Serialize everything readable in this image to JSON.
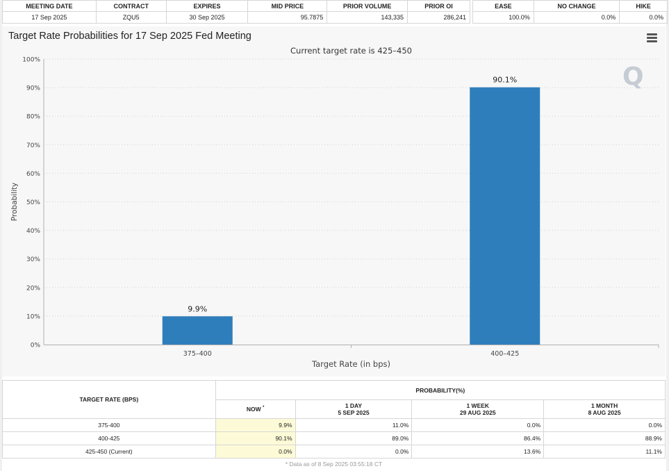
{
  "meeting_table": {
    "headers": [
      "MEETING DATE",
      "CONTRACT",
      "EXPIRES",
      "MID PRICE",
      "PRIOR VOLUME",
      "PRIOR OI"
    ],
    "row": [
      "17 Sep 2025",
      "ZQU5",
      "30 Sep 2025",
      "95.7875",
      "143,335",
      "286,241"
    ]
  },
  "outlook_table": {
    "headers": [
      "EASE",
      "NO CHANGE",
      "HIKE"
    ],
    "row": [
      "100.0%",
      "0.0%",
      "0.0%"
    ]
  },
  "chart_title": "Target Rate Probabilities for 17 Sep 2025 Fed Meeting",
  "chart_data": {
    "type": "bar",
    "title": "Target Rate Probabilities for 17 Sep 2025 Fed Meeting",
    "subtitle": "Current target rate is 425–450",
    "xlabel": "Target Rate (in bps)",
    "ylabel": "Probability",
    "categories": [
      "375–400",
      "400–425"
    ],
    "values": [
      9.9,
      90.1
    ],
    "data_labels": [
      "9.9%",
      "90.1%"
    ],
    "ylim": [
      0,
      100
    ],
    "yticks": [
      "0%",
      "10%",
      "20%",
      "30%",
      "40%",
      "50%",
      "60%",
      "70%",
      "80%",
      "90%",
      "100%"
    ],
    "grid": true,
    "bar_color": "#2f7ebc",
    "legend": "none"
  },
  "watermark": "Q",
  "prob_table": {
    "rate_header": "TARGET RATE (BPS)",
    "group_header": "PROBABILITY(%)",
    "columns": [
      {
        "line1": "NOW",
        "line2": ""
      },
      {
        "line1": "1 DAY",
        "line2": "5 SEP 2025"
      },
      {
        "line1": "1 WEEK",
        "line2": "29 AUG 2025"
      },
      {
        "line1": "1 MONTH",
        "line2": "8 AUG 2025"
      }
    ],
    "now_marker": "*",
    "rows": [
      {
        "rate": "375-400",
        "values": [
          "9.9%",
          "11.0%",
          "0.0%",
          "0.0%"
        ]
      },
      {
        "rate": "400-425",
        "values": [
          "90.1%",
          "89.0%",
          "86.4%",
          "88.9%"
        ]
      },
      {
        "rate": "425-450 (Current)",
        "values": [
          "0.0%",
          "0.0%",
          "13.6%",
          "11.1%"
        ]
      }
    ],
    "footnote": "* Data as of 8 Sep 2025 03:55:18 CT"
  }
}
